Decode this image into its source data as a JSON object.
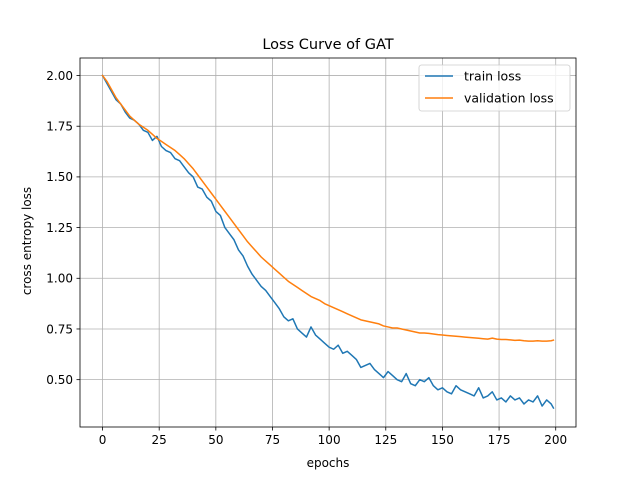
{
  "chart_data": {
    "type": "line",
    "title": "Loss Curve of GAT",
    "xlabel": "epochs",
    "ylabel": "cross entropy loss",
    "xlim": [
      -9.95,
      208.95
    ],
    "ylim": [
      0.2665,
      2.0865
    ],
    "xticks": [
      0,
      25,
      50,
      75,
      100,
      125,
      150,
      175,
      200
    ],
    "xtick_labels": [
      "0",
      "25",
      "50",
      "75",
      "100",
      "125",
      "150",
      "175",
      "200"
    ],
    "yticks": [
      0.5,
      0.75,
      1.0,
      1.25,
      1.5,
      1.75,
      2.0
    ],
    "ytick_labels": [
      "0.50",
      "0.75",
      "1.00",
      "1.25",
      "1.50",
      "1.75",
      "2.00"
    ],
    "grid": true,
    "legend_position": "upper-right",
    "series": [
      {
        "name": "train loss",
        "color": "#1f77b4",
        "x": [
          0,
          2,
          4,
          6,
          8,
          10,
          12,
          14,
          16,
          18,
          20,
          22,
          24,
          26,
          28,
          30,
          32,
          34,
          36,
          38,
          40,
          42,
          44,
          46,
          48,
          50,
          52,
          54,
          56,
          58,
          60,
          62,
          64,
          66,
          68,
          70,
          72,
          74,
          76,
          78,
          80,
          82,
          84,
          86,
          88,
          90,
          92,
          94,
          96,
          98,
          100,
          102,
          104,
          106,
          108,
          110,
          112,
          114,
          116,
          118,
          120,
          122,
          124,
          126,
          128,
          130,
          132,
          134,
          136,
          138,
          140,
          142,
          144,
          146,
          148,
          150,
          152,
          154,
          156,
          158,
          160,
          162,
          164,
          166,
          168,
          170,
          172,
          174,
          176,
          178,
          180,
          182,
          184,
          186,
          188,
          190,
          192,
          194,
          196,
          198,
          199
        ],
        "y": [
          2.0,
          1.96,
          1.92,
          1.88,
          1.86,
          1.82,
          1.79,
          1.78,
          1.76,
          1.73,
          1.72,
          1.68,
          1.7,
          1.65,
          1.63,
          1.62,
          1.59,
          1.58,
          1.55,
          1.52,
          1.5,
          1.45,
          1.44,
          1.4,
          1.38,
          1.33,
          1.31,
          1.25,
          1.22,
          1.19,
          1.14,
          1.11,
          1.06,
          1.02,
          0.99,
          0.96,
          0.94,
          0.91,
          0.88,
          0.85,
          0.81,
          0.79,
          0.8,
          0.75,
          0.73,
          0.71,
          0.76,
          0.72,
          0.7,
          0.68,
          0.66,
          0.65,
          0.67,
          0.63,
          0.64,
          0.62,
          0.6,
          0.56,
          0.57,
          0.58,
          0.55,
          0.53,
          0.51,
          0.54,
          0.52,
          0.5,
          0.49,
          0.53,
          0.48,
          0.47,
          0.5,
          0.49,
          0.51,
          0.47,
          0.45,
          0.46,
          0.44,
          0.43,
          0.47,
          0.45,
          0.44,
          0.43,
          0.42,
          0.46,
          0.41,
          0.42,
          0.44,
          0.4,
          0.41,
          0.39,
          0.42,
          0.4,
          0.41,
          0.38,
          0.4,
          0.39,
          0.42,
          0.37,
          0.4,
          0.38,
          0.36
        ]
      },
      {
        "name": "validation loss",
        "color": "#ff7f0e",
        "x": [
          0,
          2,
          4,
          6,
          8,
          10,
          12,
          14,
          16,
          18,
          20,
          22,
          24,
          26,
          28,
          30,
          32,
          34,
          36,
          38,
          40,
          42,
          44,
          46,
          48,
          50,
          52,
          54,
          56,
          58,
          60,
          62,
          64,
          66,
          68,
          70,
          72,
          74,
          76,
          78,
          80,
          82,
          84,
          86,
          88,
          90,
          92,
          94,
          96,
          98,
          100,
          102,
          104,
          106,
          108,
          110,
          112,
          114,
          116,
          118,
          120,
          122,
          124,
          126,
          128,
          130,
          132,
          134,
          136,
          138,
          140,
          142,
          144,
          146,
          148,
          150,
          152,
          154,
          156,
          158,
          160,
          162,
          164,
          166,
          168,
          170,
          172,
          174,
          176,
          178,
          180,
          182,
          184,
          186,
          188,
          190,
          192,
          194,
          196,
          198,
          199
        ],
        "y": [
          2.0,
          1.97,
          1.93,
          1.89,
          1.86,
          1.83,
          1.8,
          1.78,
          1.76,
          1.745,
          1.73,
          1.71,
          1.69,
          1.675,
          1.66,
          1.645,
          1.63,
          1.61,
          1.59,
          1.565,
          1.54,
          1.51,
          1.48,
          1.45,
          1.42,
          1.39,
          1.36,
          1.33,
          1.3,
          1.27,
          1.24,
          1.21,
          1.18,
          1.155,
          1.13,
          1.105,
          1.085,
          1.065,
          1.045,
          1.025,
          1.005,
          0.985,
          0.97,
          0.955,
          0.94,
          0.925,
          0.91,
          0.9,
          0.89,
          0.875,
          0.865,
          0.855,
          0.845,
          0.835,
          0.825,
          0.815,
          0.805,
          0.795,
          0.79,
          0.785,
          0.78,
          0.775,
          0.765,
          0.76,
          0.755,
          0.755,
          0.75,
          0.745,
          0.74,
          0.735,
          0.73,
          0.73,
          0.728,
          0.725,
          0.722,
          0.72,
          0.718,
          0.716,
          0.714,
          0.712,
          0.71,
          0.708,
          0.706,
          0.704,
          0.702,
          0.7,
          0.705,
          0.7,
          0.698,
          0.698,
          0.696,
          0.694,
          0.695,
          0.692,
          0.69,
          0.69,
          0.692,
          0.69,
          0.69,
          0.692,
          0.695
        ]
      }
    ]
  }
}
